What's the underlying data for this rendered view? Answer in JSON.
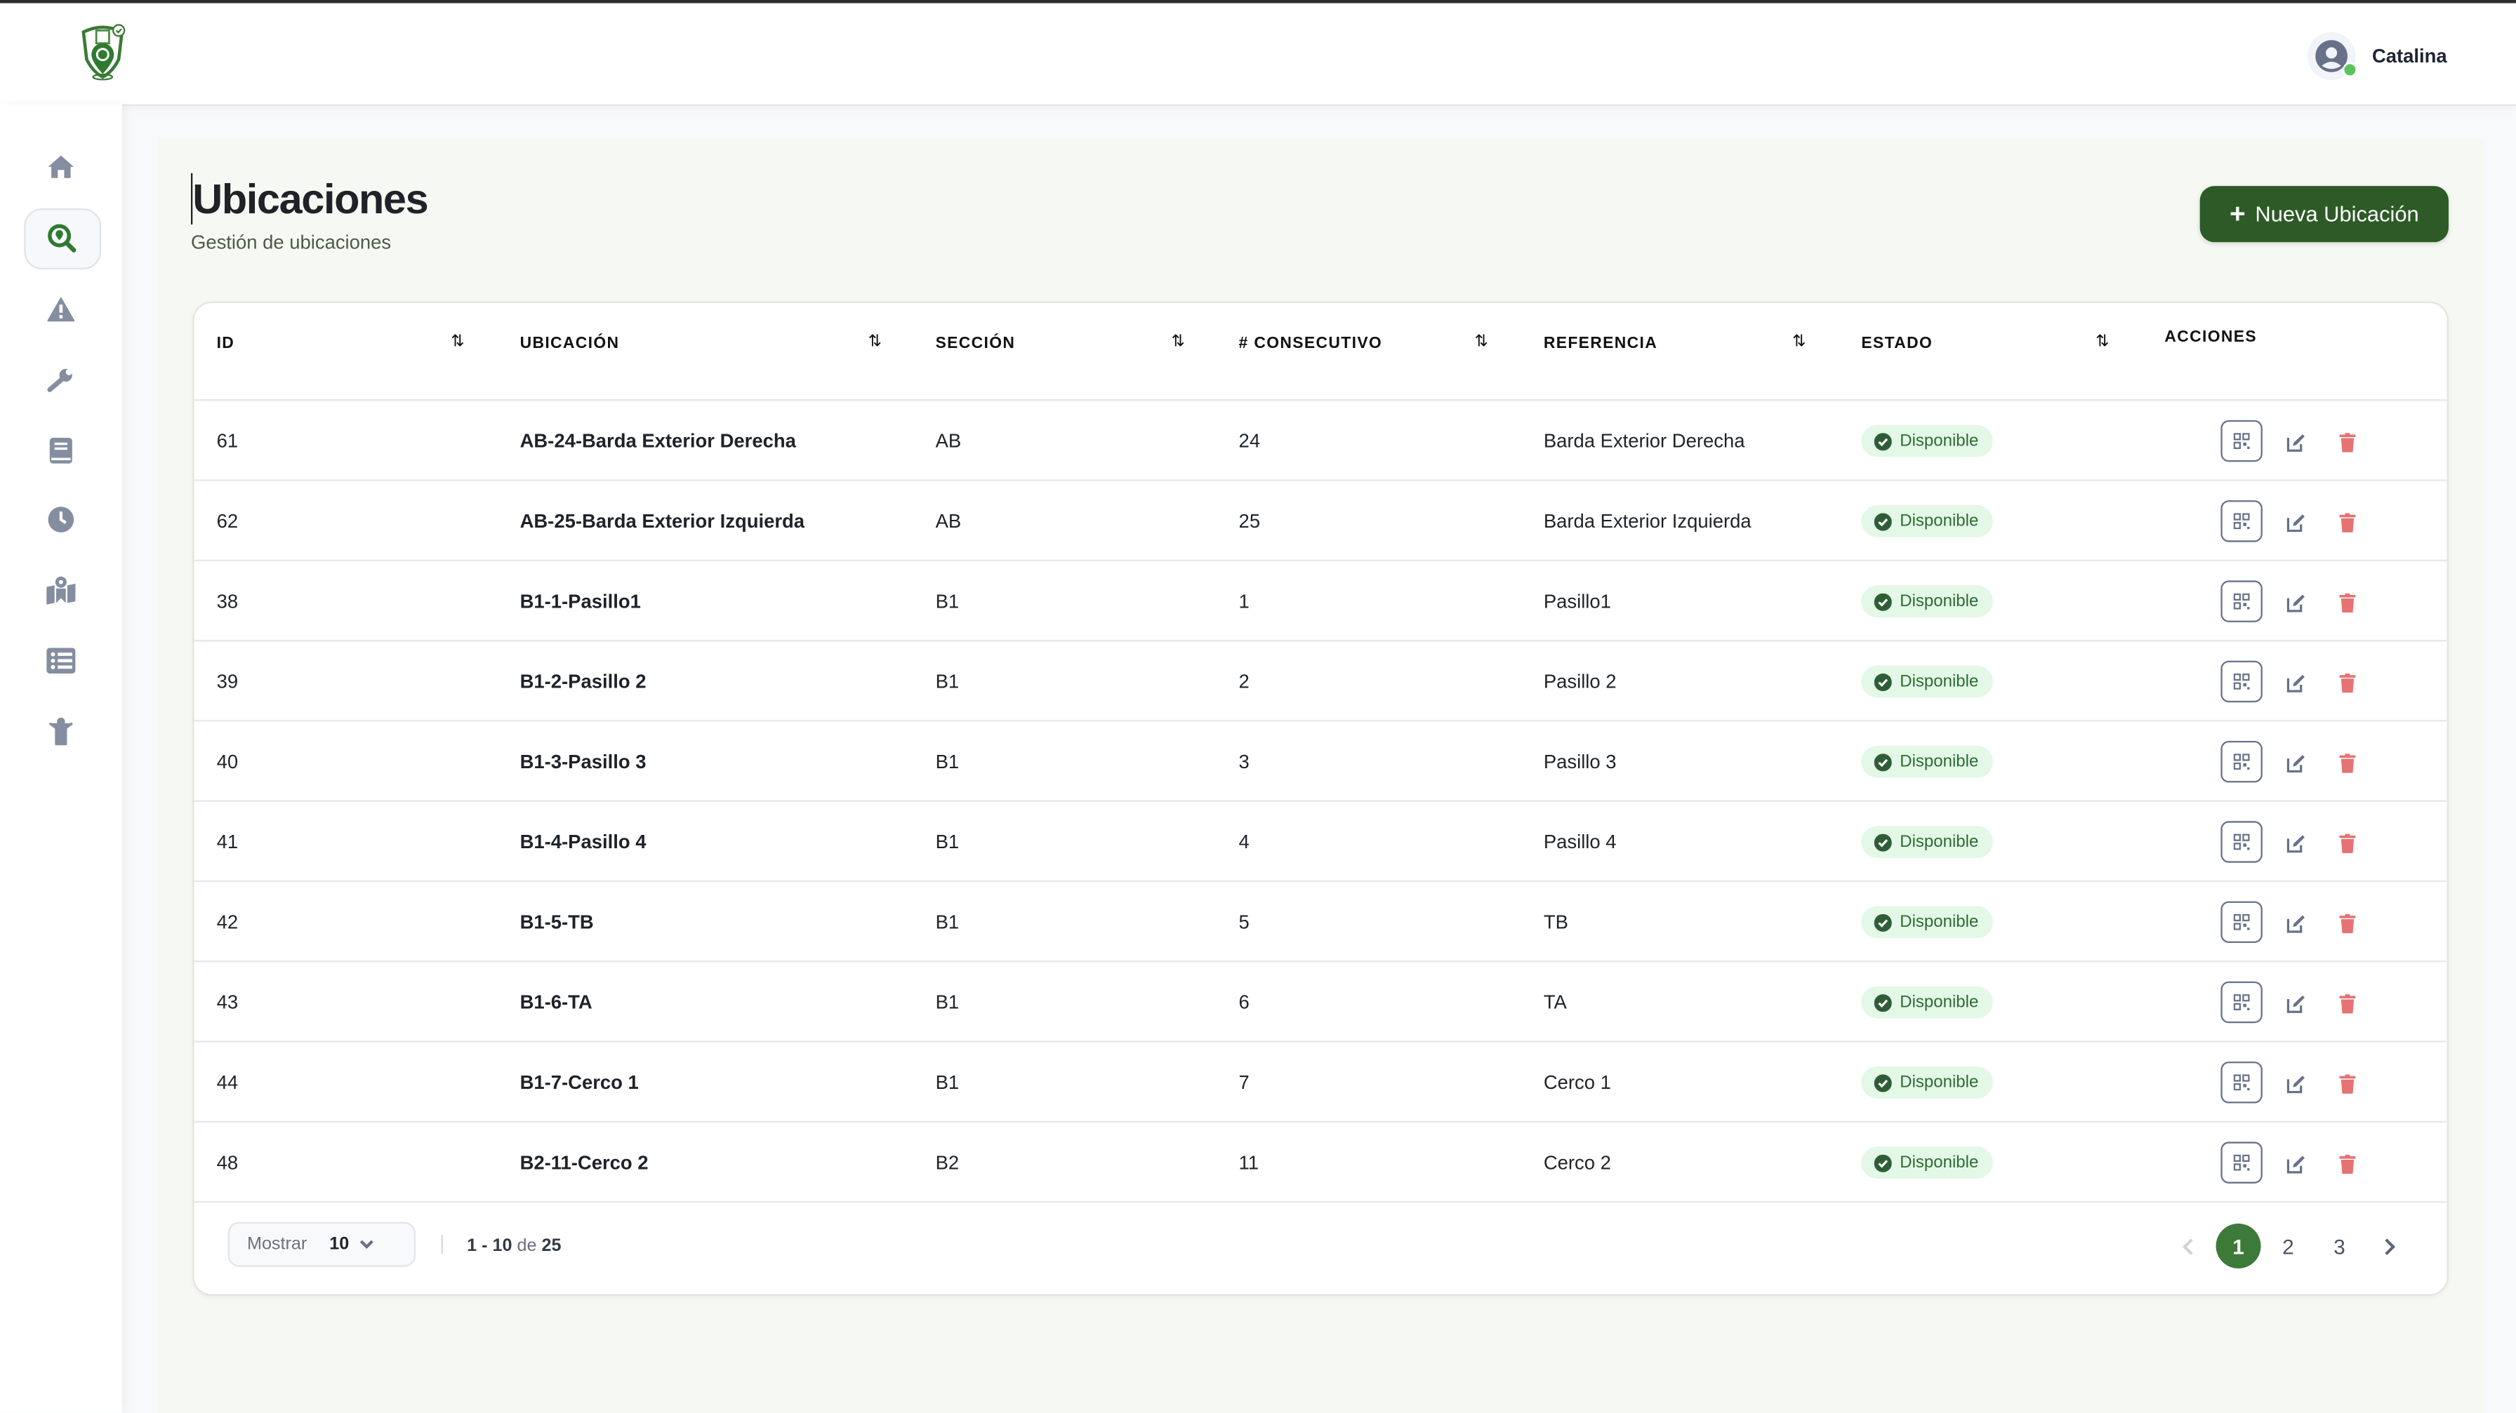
{
  "app": {
    "logo": "shield-location-qr-logo",
    "brand_color": "#2d5a27",
    "accent_color": "#3d7a3a"
  },
  "header": {
    "user_name": "Catalina",
    "user_status": "online"
  },
  "sidebar": {
    "items": [
      {
        "icon": "home-icon",
        "active": false
      },
      {
        "icon": "search-location-icon",
        "active": true
      },
      {
        "icon": "warning-icon",
        "active": false
      },
      {
        "icon": "wrench-icon",
        "active": false
      },
      {
        "icon": "book-icon",
        "active": false
      },
      {
        "icon": "clock-icon",
        "active": false
      },
      {
        "icon": "map-location-icon",
        "active": false
      },
      {
        "icon": "list-icon",
        "active": false
      },
      {
        "icon": "person-icon",
        "active": false
      }
    ]
  },
  "page": {
    "title": "Ubicaciones",
    "subtitle": "Gestión de ubicaciones",
    "new_button": "Nueva Ubicación",
    "new_button_icon": "+"
  },
  "table": {
    "columns": [
      "ID",
      "UBICACIÓN",
      "SECCIÓN",
      "# CONSECUTIVO",
      "REFERENCIA",
      "ESTADO",
      "ACCIONES"
    ],
    "rows": [
      {
        "id": "61",
        "ubicacion": "AB-24-Barda Exterior Derecha",
        "seccion": "AB",
        "consecutivo": "24",
        "referencia": "Barda Exterior Derecha",
        "estado": "Disponible"
      },
      {
        "id": "62",
        "ubicacion": "AB-25-Barda Exterior Izquierda",
        "seccion": "AB",
        "consecutivo": "25",
        "referencia": "Barda Exterior Izquierda",
        "estado": "Disponible"
      },
      {
        "id": "38",
        "ubicacion": "B1-1-Pasillo1",
        "seccion": "B1",
        "consecutivo": "1",
        "referencia": "Pasillo1",
        "estado": "Disponible"
      },
      {
        "id": "39",
        "ubicacion": "B1-2-Pasillo 2",
        "seccion": "B1",
        "consecutivo": "2",
        "referencia": "Pasillo 2",
        "estado": "Disponible"
      },
      {
        "id": "40",
        "ubicacion": "B1-3-Pasillo 3",
        "seccion": "B1",
        "consecutivo": "3",
        "referencia": "Pasillo 3",
        "estado": "Disponible"
      },
      {
        "id": "41",
        "ubicacion": "B1-4-Pasillo 4",
        "seccion": "B1",
        "consecutivo": "4",
        "referencia": "Pasillo 4",
        "estado": "Disponible"
      },
      {
        "id": "42",
        "ubicacion": "B1-5-TB",
        "seccion": "B1",
        "consecutivo": "5",
        "referencia": "TB",
        "estado": "Disponible"
      },
      {
        "id": "43",
        "ubicacion": "B1-6-TA",
        "seccion": "B1",
        "consecutivo": "6",
        "referencia": "TA",
        "estado": "Disponible"
      },
      {
        "id": "44",
        "ubicacion": "B1-7-Cerco 1",
        "seccion": "B1",
        "consecutivo": "7",
        "referencia": "Cerco 1",
        "estado": "Disponible"
      },
      {
        "id": "48",
        "ubicacion": "B2-11-Cerco 2",
        "seccion": "B2",
        "consecutivo": "11",
        "referencia": "Cerco 2",
        "estado": "Disponible"
      }
    ]
  },
  "footer": {
    "show_label": "Mostrar",
    "page_size": "10",
    "range_start_end": "1 - 10",
    "range_of": "de",
    "total": "25",
    "pages": [
      "1",
      "2",
      "3"
    ],
    "current_page": "1"
  }
}
